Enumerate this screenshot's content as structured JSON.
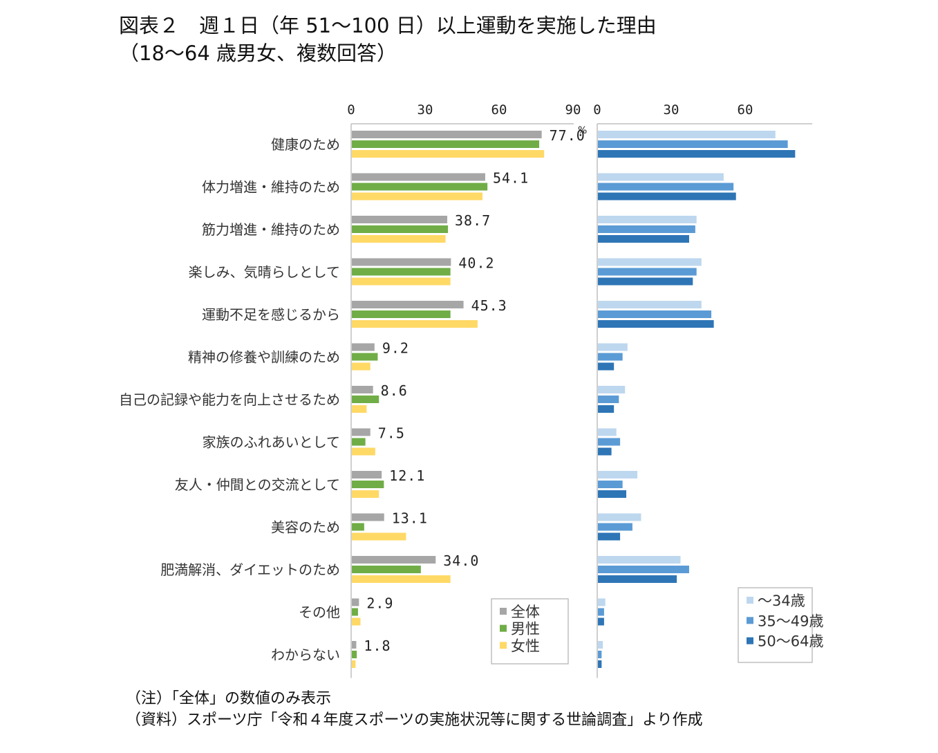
{
  "title_line1": "図表２　週１日（年 51～100 日）以上運動を実施した理由",
  "title_line2": "（18～64 歳男女、複数回答）",
  "note1": "（注）「全体」の数値のみ表示",
  "note2": "（資料）スポーツ庁「令和４年度スポーツの実施状況等に関する世論調査」より作成",
  "unit_label": "%",
  "colors": {
    "all": "#a6a6a6",
    "male": "#70ad47",
    "female": "#ffd966",
    "age1": "#bdd7ee",
    "age2": "#5b9bd5",
    "age3": "#2e75b6",
    "axis": "#bfbfbf",
    "grid": "#d9d9d9"
  },
  "chart_data": [
    {
      "type": "bar",
      "orientation": "horizontal",
      "categories": [
        "健康のため",
        "体力増進・維持のため",
        "筋力増進・維持のため",
        "楽しみ、気晴らしとして",
        "運動不足を感じるから",
        "精神の修養や訓練のため",
        "自己の記録や能力を向上させるため",
        "家族のふれあいとして",
        "友人・仲間との交流として",
        "美容のため",
        "肥満解消、ダイエットのため",
        "その他",
        "わからない"
      ],
      "xlim": [
        0,
        90
      ],
      "xticks": [
        "0",
        "30",
        "60",
        "90"
      ],
      "legend_position": "bottom-right",
      "series": [
        {
          "name": "全体",
          "values": [
            77.0,
            54.1,
            38.7,
            40.2,
            45.3,
            9.2,
            8.6,
            7.5,
            12.1,
            13.1,
            34.0,
            2.9,
            1.8
          ],
          "labels": [
            "77.0",
            "54.1",
            "38.7",
            "40.2",
            "45.3",
            "9.2",
            "8.6",
            "7.5",
            "12.1",
            "13.1",
            "34.0",
            "2.9",
            "1.8"
          ]
        },
        {
          "name": "男性",
          "values": [
            76,
            55,
            39,
            40,
            40,
            10.5,
            11,
            5.5,
            13,
            5,
            28,
            2.5,
            2
          ]
        },
        {
          "name": "女性",
          "values": [
            78,
            53,
            38,
            40,
            51,
            7.5,
            6,
            9.5,
            11,
            22,
            40,
            3.5,
            1.5
          ]
        }
      ]
    },
    {
      "type": "bar",
      "orientation": "horizontal",
      "xlim": [
        0,
        90
      ],
      "xticks": [
        "0",
        "30",
        "60"
      ],
      "legend_position": "bottom-right",
      "series": [
        {
          "name": "～34歳",
          "values": [
            72,
            51,
            40,
            42,
            42,
            12,
            11,
            7.5,
            16,
            17.5,
            33.5,
            3,
            2
          ]
        },
        {
          "name": "35～49歳",
          "values": [
            77,
            55,
            39.5,
            40,
            46,
            10,
            8.5,
            9,
            10,
            14,
            37,
            2.5,
            1.5
          ]
        },
        {
          "name": "50～64歳",
          "values": [
            80,
            56,
            37,
            38.5,
            47,
            6.5,
            6.5,
            5.5,
            11.5,
            9,
            32,
            2.5,
            1.5
          ]
        }
      ]
    }
  ]
}
